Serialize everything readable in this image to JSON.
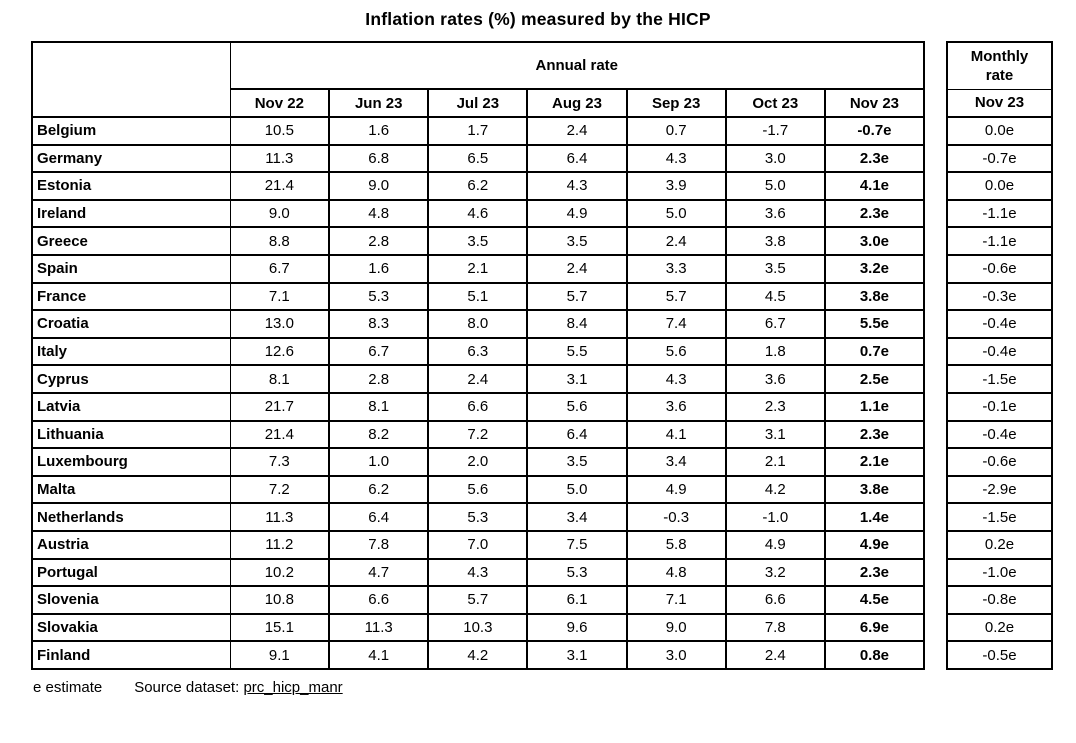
{
  "chart_data": {
    "type": "table",
    "title": "Inflation rates (%) measured by the HICP",
    "group_headers": {
      "annual": "Annual rate",
      "monthly": "Monthly rate"
    },
    "annual_columns": [
      "Nov 22",
      "Jun 23",
      "Jul 23",
      "Aug 23",
      "Sep 23",
      "Oct 23",
      "Nov 23"
    ],
    "monthly_column": "Nov 23",
    "rows": [
      {
        "country": "Belgium",
        "annual": [
          "10.5",
          "1.6",
          "1.7",
          "2.4",
          "0.7",
          "-1.7",
          "-0.7e"
        ],
        "monthly": "0.0e"
      },
      {
        "country": "Germany",
        "annual": [
          "11.3",
          "6.8",
          "6.5",
          "6.4",
          "4.3",
          "3.0",
          "2.3e"
        ],
        "monthly": "-0.7e"
      },
      {
        "country": "Estonia",
        "annual": [
          "21.4",
          "9.0",
          "6.2",
          "4.3",
          "3.9",
          "5.0",
          "4.1e"
        ],
        "monthly": "0.0e"
      },
      {
        "country": "Ireland",
        "annual": [
          "9.0",
          "4.8",
          "4.6",
          "4.9",
          "5.0",
          "3.6",
          "2.3e"
        ],
        "monthly": "-1.1e"
      },
      {
        "country": "Greece",
        "annual": [
          "8.8",
          "2.8",
          "3.5",
          "3.5",
          "2.4",
          "3.8",
          "3.0e"
        ],
        "monthly": "-1.1e"
      },
      {
        "country": "Spain",
        "annual": [
          "6.7",
          "1.6",
          "2.1",
          "2.4",
          "3.3",
          "3.5",
          "3.2e"
        ],
        "monthly": "-0.6e"
      },
      {
        "country": "France",
        "annual": [
          "7.1",
          "5.3",
          "5.1",
          "5.7",
          "5.7",
          "4.5",
          "3.8e"
        ],
        "monthly": "-0.3e"
      },
      {
        "country": "Croatia",
        "annual": [
          "13.0",
          "8.3",
          "8.0",
          "8.4",
          "7.4",
          "6.7",
          "5.5e"
        ],
        "monthly": "-0.4e"
      },
      {
        "country": "Italy",
        "annual": [
          "12.6",
          "6.7",
          "6.3",
          "5.5",
          "5.6",
          "1.8",
          "0.7e"
        ],
        "monthly": "-0.4e"
      },
      {
        "country": "Cyprus",
        "annual": [
          "8.1",
          "2.8",
          "2.4",
          "3.1",
          "4.3",
          "3.6",
          "2.5e"
        ],
        "monthly": "-1.5e"
      },
      {
        "country": "Latvia",
        "annual": [
          "21.7",
          "8.1",
          "6.6",
          "5.6",
          "3.6",
          "2.3",
          "1.1e"
        ],
        "monthly": "-0.1e"
      },
      {
        "country": "Lithuania",
        "annual": [
          "21.4",
          "8.2",
          "7.2",
          "6.4",
          "4.1",
          "3.1",
          "2.3e"
        ],
        "monthly": "-0.4e"
      },
      {
        "country": "Luxembourg",
        "annual": [
          "7.3",
          "1.0",
          "2.0",
          "3.5",
          "3.4",
          "2.1",
          "2.1e"
        ],
        "monthly": "-0.6e"
      },
      {
        "country": "Malta",
        "annual": [
          "7.2",
          "6.2",
          "5.6",
          "5.0",
          "4.9",
          "4.2",
          "3.8e"
        ],
        "monthly": "-2.9e"
      },
      {
        "country": "Netherlands",
        "annual": [
          "11.3",
          "6.4",
          "5.3",
          "3.4",
          "-0.3",
          "-1.0",
          "1.4e"
        ],
        "monthly": "-1.5e"
      },
      {
        "country": "Austria",
        "annual": [
          "11.2",
          "7.8",
          "7.0",
          "7.5",
          "5.8",
          "4.9",
          "4.9e"
        ],
        "monthly": "0.2e"
      },
      {
        "country": "Portugal",
        "annual": [
          "10.2",
          "4.7",
          "4.3",
          "5.3",
          "4.8",
          "3.2",
          "2.3e"
        ],
        "monthly": "-1.0e"
      },
      {
        "country": "Slovenia",
        "annual": [
          "10.8",
          "6.6",
          "5.7",
          "6.1",
          "7.1",
          "6.6",
          "4.5e"
        ],
        "monthly": "-0.8e"
      },
      {
        "country": "Slovakia",
        "annual": [
          "15.1",
          "11.3",
          "10.3",
          "9.6",
          "9.0",
          "7.8",
          "6.9e"
        ],
        "monthly": "0.2e"
      },
      {
        "country": "Finland",
        "annual": [
          "9.1",
          "4.1",
          "4.2",
          "3.1",
          "3.0",
          "2.4",
          "0.8e"
        ],
        "monthly": "-0.5e"
      }
    ],
    "footnote": {
      "estimate": "e estimate",
      "source_label": "Source dataset:",
      "source_link": "prc_hicp_manr"
    },
    "colors": {
      "text": "#000000",
      "border": "#000000",
      "background": "#ffffff"
    }
  }
}
